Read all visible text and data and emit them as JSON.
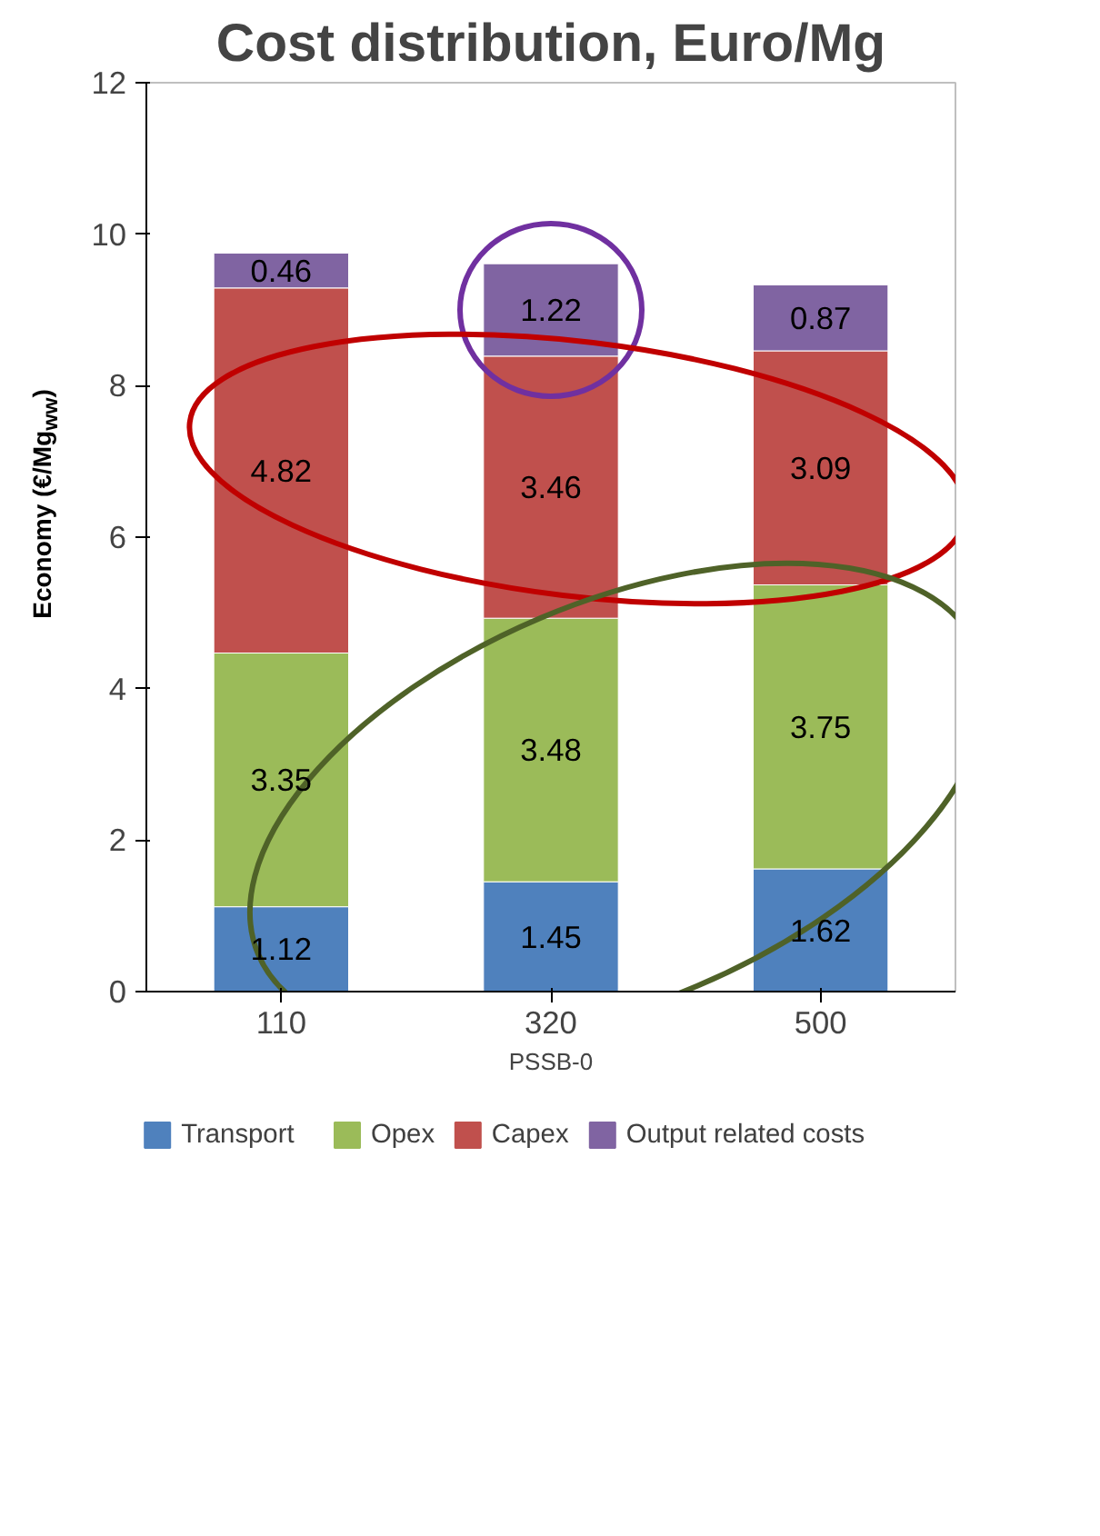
{
  "chart_data": {
    "type": "bar",
    "title": "Cost distribution, Euro/Mg",
    "xlabel": "PSSB-0",
    "ylabel": "Economy (€/Mg$_{ww}$)",
    "categories": [
      "110",
      "320",
      "500"
    ],
    "stacked": true,
    "data_labels": true,
    "series": [
      {
        "name": "Transport",
        "color": "#4f81bd",
        "values": [
          1.12,
          1.45,
          1.62
        ]
      },
      {
        "name": "Opex",
        "color": "#9bbb59",
        "values": [
          3.35,
          3.48,
          3.75
        ]
      },
      {
        "name": "Capex",
        "color": "#c0504d",
        "values": [
          4.82,
          3.46,
          3.09
        ]
      },
      {
        "name": "Output related costs",
        "color": "#8064a2",
        "values": [
          0.46,
          1.22,
          0.87
        ]
      }
    ],
    "ylim": [
      0,
      12
    ],
    "yticks": [
      0,
      2,
      4,
      6,
      8,
      10,
      12
    ],
    "grid": false,
    "legend": "bottom"
  }
}
